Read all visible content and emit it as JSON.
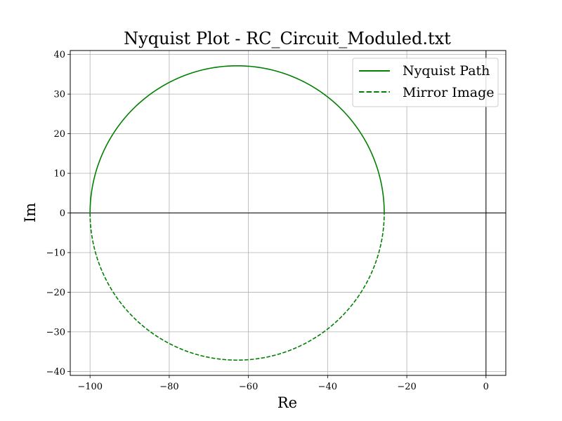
{
  "chart_data": {
    "type": "line",
    "title": "Nyquist Plot - RC_Circuit_Moduled.txt",
    "xlabel": "Re",
    "ylabel": "Im",
    "xlim": [
      -105,
      5
    ],
    "ylim": [
      -41,
      41
    ],
    "x_ticks": [
      -100,
      -80,
      -60,
      -40,
      -20,
      0
    ],
    "y_ticks": [
      -40,
      -30,
      -20,
      -10,
      0,
      10,
      20,
      30,
      40
    ],
    "grid": true,
    "reference_lines": {
      "horizontal_at": 0,
      "vertical_at": 0
    },
    "legend_position": "top-right",
    "circle": {
      "center_re": -62.85,
      "radius": 37.15
    },
    "series": [
      {
        "name": "Nyquist Path",
        "style": "solid",
        "color": "#008000",
        "x": [
          -100.0,
          -99.2,
          -97.4,
          -95.0,
          -91.8,
          -88.0,
          -83.8,
          -79.4,
          -75.0,
          -71.4,
          -67.6,
          -62.9,
          -58.0,
          -53.6,
          -49.5,
          -45.7,
          -42.1,
          -38.8,
          -35.7,
          -33.0,
          -30.8,
          -29.0,
          -27.6,
          -26.6,
          -26.0,
          -25.7
        ],
        "y": [
          0.0,
          7.0,
          13.2,
          18.6,
          23.4,
          27.4,
          30.7,
          33.2,
          35.0,
          36.2,
          36.9,
          37.15,
          36.8,
          35.9,
          34.7,
          33.1,
          31.1,
          28.7,
          25.9,
          22.6,
          19.0,
          15.2,
          11.2,
          7.4,
          3.6,
          0.0
        ]
      },
      {
        "name": "Mirror Image",
        "style": "dashed",
        "color": "#008000",
        "x": [
          -100.0,
          -99.2,
          -97.4,
          -95.0,
          -91.8,
          -88.0,
          -83.8,
          -79.4,
          -75.0,
          -71.4,
          -67.6,
          -62.9,
          -58.0,
          -53.6,
          -49.5,
          -45.7,
          -42.1,
          -38.8,
          -35.7,
          -33.0,
          -30.8,
          -29.0,
          -27.6,
          -26.6,
          -26.0,
          -25.7
        ],
        "y": [
          0.0,
          -7.0,
          -13.2,
          -18.6,
          -23.4,
          -27.4,
          -30.7,
          -33.2,
          -35.0,
          -36.2,
          -36.9,
          -37.15,
          -36.8,
          -35.9,
          -34.7,
          -33.1,
          -31.1,
          -28.7,
          -25.9,
          -22.6,
          -19.0,
          -15.2,
          -11.2,
          -7.4,
          -3.6,
          0.0
        ]
      }
    ]
  }
}
